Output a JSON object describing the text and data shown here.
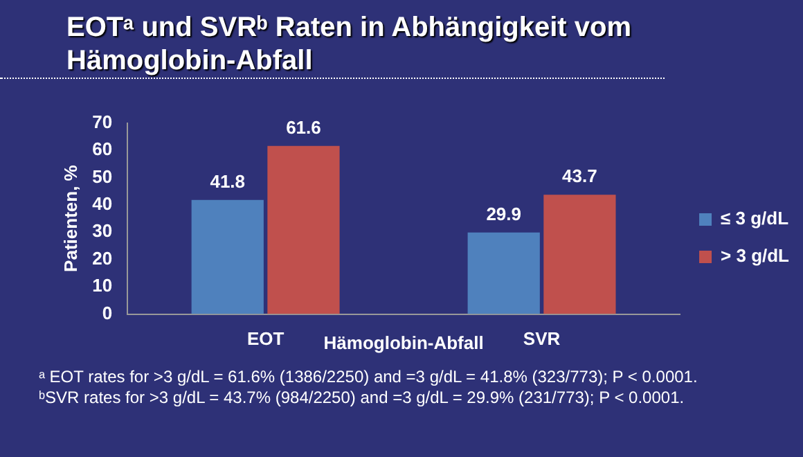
{
  "chart_data": {
    "type": "bar",
    "title": "EOTᵃ und SVRᵇ Raten in Abhängigkeit vom Hämoglobin-Abfall",
    "xlabel": "Hämoglobin-Abfall",
    "ylabel": "Patienten, %",
    "categories": [
      "EOT",
      "SVR"
    ],
    "series": [
      {
        "name": "≤ 3 g/dL",
        "color": "#4f81bd",
        "values": [
          41.8,
          29.9
        ]
      },
      {
        "name": "> 3 g/dL",
        "color": "#c0504d",
        "values": [
          61.6,
          43.7
        ]
      }
    ],
    "ylim": [
      0,
      70
    ],
    "yticks": [
      0,
      10,
      20,
      30,
      40,
      50,
      60,
      70
    ],
    "grid": false,
    "legend": "right",
    "data_labels": true,
    "annotations": [
      "ᵃ EOT rates for >3 g/dL = 61.6% (1386/2250) and =3 g/dL = 41.8% (323/773); P < 0.0001.",
      "ᵇSVR rates for >3 g/dL = 43.7% (984/2250) and =3 g/dL = 29.9% (231/773); P < 0.0001."
    ]
  }
}
